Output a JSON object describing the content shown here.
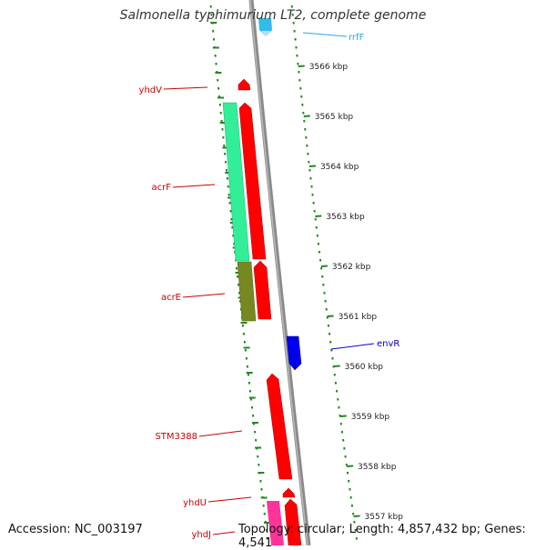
{
  "title": "Salmonella typhimurium LT2, complete genome",
  "footer": {
    "accession": "Accession: NC_003197",
    "topology": "Topology: circular; Length: 4,857,432 bp; Genes: 4,541"
  },
  "scale": {
    "unit": "kbp",
    "ticks": [
      "3566 kbp",
      "3565 kbp",
      "3564 kbp",
      "3563 kbp",
      "3562 kbp",
      "3561 kbp",
      "3560 kbp",
      "3559 kbp",
      "3558 kbp",
      "3557 kbp"
    ]
  },
  "genes": [
    {
      "name": "rrfF",
      "strand": "reverse",
      "color": "#33bbee",
      "label_color": "#22aadd"
    },
    {
      "name": "yhdV",
      "strand": "forward",
      "color": "#ff0000",
      "label_color": "#cc0000"
    },
    {
      "name": "acrF",
      "strand": "forward",
      "color": "#ff0000",
      "label_color": "#cc0000"
    },
    {
      "name": "acrE",
      "strand": "forward",
      "color": "#ff0000",
      "label_color": "#cc0000"
    },
    {
      "name": "envR",
      "strand": "reverse",
      "color": "#0000ee",
      "label_color": "#0000cc"
    },
    {
      "name": "STM3388",
      "strand": "forward",
      "color": "#ff0000",
      "label_color": "#cc0000"
    },
    {
      "name": "yhdU",
      "strand": "forward",
      "color": "#ff0000",
      "label_color": "#cc0000"
    },
    {
      "name": "yhdJ",
      "strand": "forward",
      "color": "#ff0000",
      "label_color": "#cc0000"
    }
  ],
  "colors": {
    "backbone": "#808080",
    "tick": "#228822",
    "cog_teal": "#33ee99",
    "cog_olive": "#778822",
    "cog_pink": "#ff3399"
  }
}
